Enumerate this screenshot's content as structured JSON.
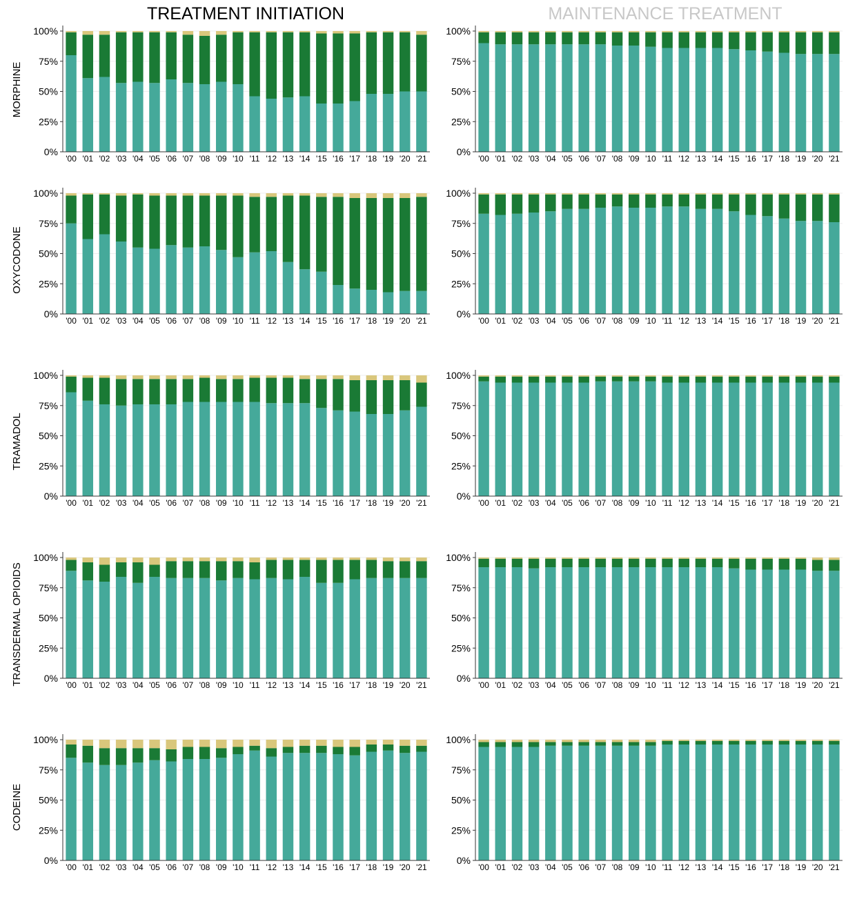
{
  "column_titles": [
    "TREATMENT INITIATION",
    "MAINTENANCE TREATMENT"
  ],
  "row_labels": [
    "MORPHINE",
    "OXYCODONE",
    "TRAMADOL",
    "TRANSDERMAL OPIOIDS",
    "CODEINE"
  ],
  "colors": {
    "bottom": "#45a99a",
    "middle": "#1a7a35",
    "top": "#d9c77c",
    "title_active": "#000000",
    "title_inactive": "#c8c8c8",
    "axis": "#333333",
    "grid": "#eeeeee"
  },
  "chart_data": [
    {
      "type": "bar",
      "stacked": true,
      "row_label": "MORPHINE",
      "column_title": "TREATMENT INITIATION",
      "categories": [
        "'00",
        "'01",
        "'02",
        "'03",
        "'04",
        "'05",
        "'06",
        "'07",
        "'08",
        "'09",
        "'10",
        "'11",
        "'12",
        "'13",
        "'14",
        "'15",
        "'16",
        "'17",
        "'18",
        "'19",
        "'20",
        "'21"
      ],
      "yticks": [
        "0%",
        "25%",
        "50%",
        "75%",
        "100%"
      ],
      "ylim": [
        0,
        100
      ],
      "series": [
        {
          "values": [
            80,
            61,
            62,
            57,
            58,
            57,
            60,
            57,
            56,
            58,
            56,
            46,
            44,
            45,
            46,
            40,
            40,
            42,
            48,
            48,
            50,
            50
          ]
        },
        {
          "values": [
            19,
            36,
            35,
            42,
            41,
            42,
            39,
            40,
            40,
            39,
            43,
            53,
            55,
            54,
            53,
            58,
            58,
            56,
            51,
            51,
            49,
            47
          ]
        },
        {
          "values": [
            1,
            3,
            3,
            1,
            1,
            1,
            1,
            3,
            4,
            3,
            1,
            1,
            1,
            1,
            1,
            2,
            2,
            2,
            1,
            1,
            1,
            3
          ]
        }
      ]
    },
    {
      "type": "bar",
      "stacked": true,
      "row_label": "MORPHINE",
      "column_title": "MAINTENANCE TREATMENT",
      "categories": [
        "'00",
        "'01",
        "'02",
        "'03",
        "'04",
        "'05",
        "'06",
        "'07",
        "'08",
        "'09",
        "'10",
        "'11",
        "'12",
        "'13",
        "'14",
        "'15",
        "'16",
        "'17",
        "'18",
        "'19",
        "'20",
        "'21"
      ],
      "yticks": [
        "0%",
        "25%",
        "50%",
        "75%",
        "100%"
      ],
      "ylim": [
        0,
        100
      ],
      "series": [
        {
          "values": [
            90,
            89,
            89,
            89,
            89,
            89,
            89,
            89,
            88,
            88,
            87,
            86,
            86,
            86,
            86,
            85,
            84,
            83,
            82,
            81,
            81,
            81
          ]
        },
        {
          "values": [
            9,
            10,
            10,
            10,
            10,
            10,
            10,
            10,
            11,
            11,
            12,
            13,
            13,
            13,
            13,
            14,
            15,
            16,
            17,
            18,
            18,
            18
          ]
        },
        {
          "values": [
            1,
            1,
            1,
            1,
            1,
            1,
            1,
            1,
            1,
            1,
            1,
            1,
            1,
            1,
            1,
            1,
            1,
            1,
            1,
            1,
            1,
            1
          ]
        }
      ]
    },
    {
      "type": "bar",
      "stacked": true,
      "row_label": "OXYCODONE",
      "column_title": "TREATMENT INITIATION",
      "categories": [
        "'00",
        "'01",
        "'02",
        "'03",
        "'04",
        "'05",
        "'06",
        "'07",
        "'08",
        "'09",
        "'10",
        "'11",
        "'12",
        "'13",
        "'14",
        "'15",
        "'16",
        "'17",
        "'18",
        "'19",
        "'20",
        "'21"
      ],
      "yticks": [
        "0%",
        "25%",
        "50%",
        "75%",
        "100%"
      ],
      "ylim": [
        0,
        100
      ],
      "series": [
        {
          "values": [
            75,
            62,
            66,
            60,
            55,
            54,
            57,
            55,
            56,
            53,
            47,
            51,
            52,
            43,
            37,
            35,
            24,
            21,
            20,
            18,
            19,
            19
          ]
        },
        {
          "values": [
            23,
            37,
            33,
            38,
            44,
            44,
            41,
            43,
            42,
            45,
            51,
            46,
            45,
            55,
            61,
            62,
            73,
            75,
            76,
            78,
            77,
            78
          ]
        },
        {
          "values": [
            2,
            1,
            1,
            2,
            1,
            2,
            2,
            2,
            2,
            2,
            2,
            3,
            3,
            2,
            2,
            3,
            3,
            4,
            4,
            4,
            4,
            3
          ]
        }
      ]
    },
    {
      "type": "bar",
      "stacked": true,
      "row_label": "OXYCODONE",
      "column_title": "MAINTENANCE TREATMENT",
      "categories": [
        "'00",
        "'01",
        "'02",
        "'03",
        "'04",
        "'05",
        "'06",
        "'07",
        "'08",
        "'09",
        "'10",
        "'11",
        "'12",
        "'13",
        "'14",
        "'15",
        "'16",
        "'17",
        "'18",
        "'19",
        "'20",
        "'21"
      ],
      "yticks": [
        "0%",
        "25%",
        "50%",
        "75%",
        "100%"
      ],
      "ylim": [
        0,
        100
      ],
      "series": [
        {
          "values": [
            83,
            82,
            83,
            84,
            85,
            87,
            87,
            88,
            89,
            88,
            88,
            89,
            89,
            87,
            87,
            85,
            82,
            81,
            79,
            77,
            77,
            76
          ]
        },
        {
          "values": [
            16,
            17,
            16,
            15,
            14,
            12,
            12,
            11,
            10,
            11,
            11,
            10,
            10,
            12,
            12,
            14,
            17,
            18,
            20,
            22,
            22,
            23
          ]
        },
        {
          "values": [
            1,
            1,
            1,
            1,
            1,
            1,
            1,
            1,
            1,
            1,
            1,
            1,
            1,
            1,
            1,
            1,
            1,
            1,
            1,
            1,
            1,
            1
          ]
        }
      ]
    },
    {
      "type": "bar",
      "stacked": true,
      "row_label": "TRAMADOL",
      "column_title": "TREATMENT INITIATION",
      "categories": [
        "'00",
        "'01",
        "'02",
        "'03",
        "'04",
        "'05",
        "'06",
        "'07",
        "'08",
        "'09",
        "'10",
        "'11",
        "'12",
        "'13",
        "'14",
        "'15",
        "'16",
        "'17",
        "'18",
        "'19",
        "'20",
        "'21"
      ],
      "yticks": [
        "0%",
        "25%",
        "50%",
        "75%",
        "100%"
      ],
      "ylim": [
        0,
        100
      ],
      "series": [
        {
          "values": [
            86,
            79,
            76,
            75,
            76,
            76,
            76,
            78,
            78,
            78,
            78,
            78,
            77,
            77,
            77,
            73,
            71,
            70,
            68,
            68,
            71,
            74
          ]
        },
        {
          "values": [
            13,
            19,
            22,
            22,
            21,
            21,
            21,
            19,
            20,
            19,
            19,
            20,
            21,
            21,
            20,
            24,
            26,
            26,
            28,
            28,
            25,
            20
          ]
        },
        {
          "values": [
            1,
            2,
            2,
            3,
            3,
            3,
            3,
            3,
            2,
            3,
            3,
            2,
            2,
            2,
            3,
            3,
            3,
            4,
            4,
            4,
            4,
            6
          ]
        }
      ]
    },
    {
      "type": "bar",
      "stacked": true,
      "row_label": "TRAMADOL",
      "column_title": "MAINTENANCE TREATMENT",
      "categories": [
        "'00",
        "'01",
        "'02",
        "'03",
        "'04",
        "'05",
        "'06",
        "'07",
        "'08",
        "'09",
        "'10",
        "'11",
        "'12",
        "'13",
        "'14",
        "'15",
        "'16",
        "'17",
        "'18",
        "'19",
        "'20",
        "'21"
      ],
      "yticks": [
        "0%",
        "25%",
        "50%",
        "75%",
        "100%"
      ],
      "ylim": [
        0,
        100
      ],
      "series": [
        {
          "values": [
            95,
            94,
            94,
            94,
            94,
            94,
            94,
            95,
            95,
            95,
            95,
            94,
            94,
            94,
            94,
            94,
            94,
            94,
            94,
            94,
            94,
            94
          ]
        },
        {
          "values": [
            4,
            5,
            5,
            5,
            5,
            5,
            5,
            4,
            4,
            4,
            4,
            5,
            5,
            5,
            5,
            5,
            5,
            5,
            5,
            5,
            5,
            5
          ]
        },
        {
          "values": [
            1,
            1,
            1,
            1,
            1,
            1,
            1,
            1,
            1,
            1,
            1,
            1,
            1,
            1,
            1,
            1,
            1,
            1,
            1,
            1,
            1,
            1
          ]
        }
      ]
    },
    {
      "type": "bar",
      "stacked": true,
      "row_label": "TRANSDERMAL OPIOIDS",
      "column_title": "TREATMENT INITIATION",
      "categories": [
        "'00",
        "'01",
        "'02",
        "'03",
        "'04",
        "'05",
        "'06",
        "'07",
        "'08",
        "'09",
        "'10",
        "'11",
        "'12",
        "'13",
        "'14",
        "'15",
        "'16",
        "'17",
        "'18",
        "'19",
        "'20",
        "'21"
      ],
      "yticks": [
        "0%",
        "25%",
        "50%",
        "75%",
        "100%"
      ],
      "ylim": [
        0,
        100
      ],
      "series": [
        {
          "values": [
            89,
            81,
            80,
            84,
            79,
            84,
            83,
            83,
            83,
            81,
            83,
            82,
            83,
            82,
            84,
            79,
            79,
            82,
            83,
            83,
            83,
            83
          ]
        },
        {
          "values": [
            9,
            15,
            14,
            12,
            17,
            10,
            14,
            14,
            14,
            16,
            14,
            14,
            15,
            16,
            14,
            19,
            19,
            16,
            15,
            14,
            14,
            14
          ]
        },
        {
          "values": [
            2,
            4,
            6,
            4,
            4,
            6,
            3,
            3,
            3,
            3,
            3,
            4,
            2,
            2,
            2,
            2,
            2,
            2,
            2,
            3,
            3,
            3
          ]
        }
      ]
    },
    {
      "type": "bar",
      "stacked": true,
      "row_label": "TRANSDERMAL OPIOIDS",
      "column_title": "MAINTENANCE TREATMENT",
      "categories": [
        "'00",
        "'01",
        "'02",
        "'03",
        "'04",
        "'05",
        "'06",
        "'07",
        "'08",
        "'09",
        "'10",
        "'11",
        "'12",
        "'13",
        "'14",
        "'15",
        "'16",
        "'17",
        "'18",
        "'19",
        "'20",
        "'21"
      ],
      "yticks": [
        "0%",
        "25%",
        "50%",
        "75%",
        "100%"
      ],
      "ylim": [
        0,
        100
      ],
      "series": [
        {
          "values": [
            92,
            92,
            92,
            91,
            92,
            92,
            92,
            92,
            92,
            92,
            92,
            92,
            92,
            92,
            92,
            91,
            90,
            90,
            90,
            90,
            89,
            89
          ]
        },
        {
          "values": [
            7,
            7,
            7,
            8,
            7,
            7,
            7,
            7,
            7,
            7,
            7,
            7,
            7,
            7,
            7,
            8,
            9,
            9,
            9,
            9,
            9,
            9
          ]
        },
        {
          "values": [
            1,
            1,
            1,
            1,
            1,
            1,
            1,
            1,
            1,
            1,
            1,
            1,
            1,
            1,
            1,
            1,
            1,
            1,
            1,
            1,
            2,
            2
          ]
        }
      ]
    },
    {
      "type": "bar",
      "stacked": true,
      "row_label": "CODEINE",
      "column_title": "TREATMENT INITIATION",
      "categories": [
        "'00",
        "'01",
        "'02",
        "'03",
        "'04",
        "'05",
        "'06",
        "'07",
        "'08",
        "'09",
        "'10",
        "'11",
        "'12",
        "'13",
        "'14",
        "'15",
        "'16",
        "'17",
        "'18",
        "'19",
        "'20",
        "'21"
      ],
      "yticks": [
        "0%",
        "25%",
        "50%",
        "75%",
        "100%"
      ],
      "ylim": [
        0,
        100
      ],
      "series": [
        {
          "values": [
            85,
            81,
            79,
            79,
            81,
            83,
            82,
            84,
            84,
            85,
            88,
            91,
            86,
            89,
            89,
            89,
            88,
            87,
            90,
            91,
            89,
            90
          ]
        },
        {
          "values": [
            11,
            14,
            14,
            14,
            12,
            10,
            10,
            10,
            10,
            8,
            6,
            4,
            7,
            5,
            6,
            6,
            6,
            7,
            6,
            5,
            6,
            5
          ]
        },
        {
          "values": [
            4,
            5,
            7,
            7,
            7,
            7,
            8,
            6,
            6,
            7,
            6,
            5,
            7,
            6,
            5,
            5,
            6,
            6,
            4,
            4,
            5,
            5
          ]
        }
      ]
    },
    {
      "type": "bar",
      "stacked": true,
      "row_label": "CODEINE",
      "column_title": "MAINTENANCE TREATMENT",
      "categories": [
        "'00",
        "'01",
        "'02",
        "'03",
        "'04",
        "'05",
        "'06",
        "'07",
        "'08",
        "'09",
        "'10",
        "'11",
        "'12",
        "'13",
        "'14",
        "'15",
        "'16",
        "'17",
        "'18",
        "'19",
        "'20",
        "'21"
      ],
      "yticks": [
        "0%",
        "25%",
        "50%",
        "75%",
        "100%"
      ],
      "ylim": [
        0,
        100
      ],
      "series": [
        {
          "values": [
            94,
            94,
            94,
            94,
            95,
            95,
            95,
            95,
            95,
            95,
            95,
            96,
            96,
            96,
            96,
            96,
            96,
            96,
            96,
            96,
            96,
            96
          ]
        },
        {
          "values": [
            4,
            4,
            4,
            4,
            3,
            3,
            3,
            3,
            3,
            3,
            3,
            3,
            3,
            3,
            3,
            3,
            3,
            3,
            3,
            3,
            3,
            3
          ]
        },
        {
          "values": [
            2,
            2,
            2,
            2,
            2,
            2,
            2,
            2,
            2,
            2,
            2,
            1,
            1,
            1,
            1,
            1,
            1,
            1,
            1,
            1,
            1,
            1
          ]
        }
      ]
    }
  ]
}
